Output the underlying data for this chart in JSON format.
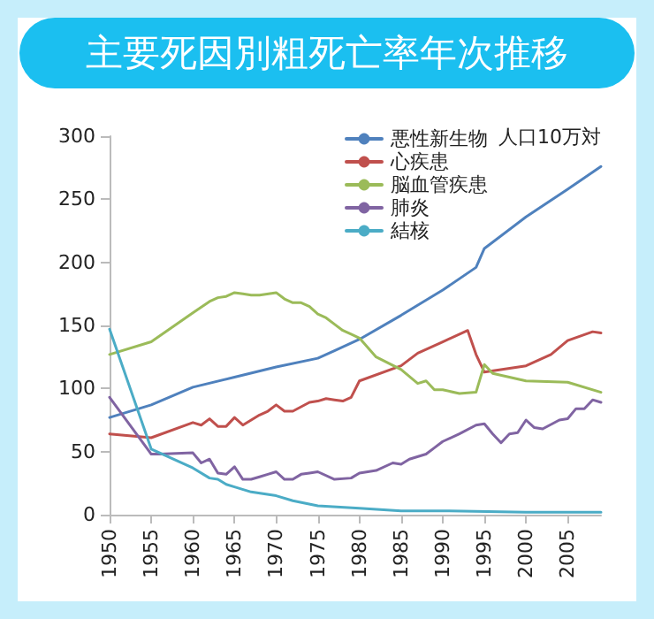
{
  "chart_data": {
    "type": "line",
    "title": "主要死因別粗死亡率年次推移",
    "annotations": [
      "人口10万対"
    ],
    "xlim": [
      1950,
      2009
    ],
    "xticks": [
      1950,
      1955,
      1960,
      1965,
      1970,
      1975,
      1980,
      1985,
      1990,
      1995,
      2000,
      2005
    ],
    "ylim": [
      0,
      300
    ],
    "yticks": [
      0,
      50,
      100,
      150,
      200,
      250,
      300
    ],
    "grid": false,
    "legend": "top right",
    "series": [
      {
        "name": "悪性新生物",
        "color": "#4f81bd",
        "x": [
          1950,
          1955,
          1960,
          1965,
          1970,
          1975,
          1977,
          1980,
          1985,
          1990,
          1994,
          1995,
          2000,
          2005,
          2009
        ],
        "values": [
          77,
          87,
          101,
          109,
          117,
          124,
          130,
          139,
          158,
          178,
          196,
          211,
          236,
          258,
          276
        ]
      },
      {
        "name": "心疾患",
        "color": "#c0504d",
        "x": [
          1950,
          1955,
          1960,
          1961,
          1962,
          1963,
          1964,
          1965,
          1966,
          1968,
          1969,
          1970,
          1971,
          1972,
          1974,
          1975,
          1976,
          1977,
          1978,
          1979,
          1980,
          1985,
          1987,
          1990,
          1993,
          1994,
          1995,
          2000,
          2003,
          2005,
          2008,
          2009
        ],
        "values": [
          64,
          61,
          73,
          71,
          76,
          70,
          70,
          77,
          71,
          79,
          82,
          87,
          82,
          82,
          89,
          90,
          92,
          91,
          90,
          93,
          106,
          118,
          128,
          137,
          146,
          127,
          113,
          118,
          127,
          138,
          145,
          144
        ]
      },
      {
        "name": "脳血管疾患",
        "color": "#9bbb59",
        "x": [
          1950,
          1955,
          1960,
          1962,
          1963,
          1964,
          1965,
          1966,
          1967,
          1968,
          1970,
          1971,
          1972,
          1973,
          1974,
          1975,
          1976,
          1977,
          1978,
          1979,
          1980,
          1982,
          1985,
          1987,
          1988,
          1989,
          1990,
          1992,
          1994,
          1995,
          1996,
          2000,
          2005,
          2009
        ],
        "values": [
          127,
          137,
          160,
          169,
          172,
          173,
          176,
          175,
          174,
          174,
          176,
          171,
          168,
          168,
          165,
          159,
          156,
          151,
          146,
          143,
          140,
          125,
          115,
          104,
          106,
          99,
          99,
          96,
          97,
          119,
          112,
          106,
          105,
          97
        ]
      },
      {
        "name": "肺炎",
        "color": "#8064a2",
        "x": [
          1950,
          1955,
          1956,
          1960,
          1961,
          1962,
          1963,
          1964,
          1965,
          1966,
          1967,
          1968,
          1969,
          1970,
          1971,
          1972,
          1973,
          1974,
          1975,
          1977,
          1979,
          1980,
          1982,
          1984,
          1985,
          1986,
          1988,
          1989,
          1990,
          1992,
          1994,
          1995,
          1996,
          1997,
          1998,
          1999,
          2000,
          2001,
          2002,
          2004,
          2005,
          2006,
          2007,
          2008,
          2009
        ],
        "values": [
          93,
          48,
          48,
          49,
          41,
          44,
          33,
          32,
          38,
          28,
          28,
          30,
          32,
          34,
          28,
          28,
          32,
          33,
          34,
          28,
          29,
          33,
          35,
          41,
          40,
          44,
          48,
          53,
          58,
          64,
          71,
          72,
          64,
          57,
          64,
          65,
          75,
          69,
          68,
          75,
          76,
          84,
          84,
          91,
          89
        ]
      },
      {
        "name": "結核",
        "color": "#4bacc6",
        "x": [
          1950,
          1955,
          1960,
          1962,
          1963,
          1964,
          1965,
          1967,
          1970,
          1972,
          1975,
          1980,
          1985,
          1990,
          2000,
          2009
        ],
        "values": [
          147,
          52,
          37,
          29,
          28,
          24,
          22,
          18,
          15,
          11,
          7,
          5,
          3,
          3,
          2,
          2
        ]
      }
    ]
  }
}
